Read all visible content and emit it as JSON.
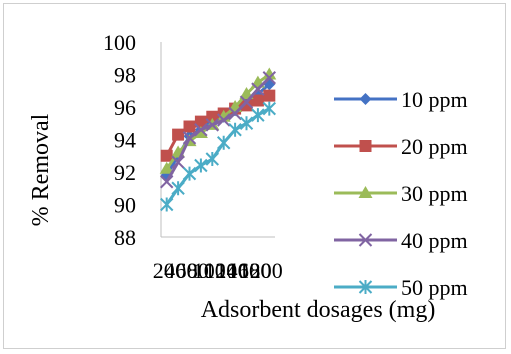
{
  "chart_data": {
    "type": "line",
    "title": "",
    "xlabel": "Adsorbent dosages (mg)",
    "ylabel": "% Removal",
    "ylim": [
      88,
      100
    ],
    "yticks": [
      88,
      90,
      92,
      94,
      96,
      98,
      100
    ],
    "grid": false,
    "legend_position": "right",
    "x": [
      20,
      40,
      60,
      80,
      100,
      120,
      140,
      160,
      180,
      200
    ],
    "x_tick_labels": [
      "20",
      "40",
      "60",
      "80",
      "100",
      "120",
      "140",
      "160",
      "180",
      "200"
    ],
    "series": [
      {
        "name": "10 ppm",
        "color": "#4472c4",
        "marker": "diamond",
        "values": [
          91.8,
          93.0,
          94.2,
          94.6,
          95.0,
          95.4,
          95.8,
          96.2,
          96.8,
          97.4
        ]
      },
      {
        "name": "20 ppm",
        "color": "#c0504d",
        "marker": "square",
        "values": [
          93.0,
          94.3,
          94.8,
          95.1,
          95.4,
          95.6,
          95.9,
          96.1,
          96.4,
          96.7
        ]
      },
      {
        "name": "30 ppm",
        "color": "#9bbb59",
        "marker": "triangle",
        "values": [
          92.2,
          93.2,
          93.9,
          94.4,
          94.9,
          95.4,
          96.0,
          96.8,
          97.5,
          98.0
        ]
      },
      {
        "name": "40 ppm",
        "color": "#8064a2",
        "marker": "x",
        "values": [
          91.4,
          92.6,
          94.1,
          94.6,
          94.9,
          95.2,
          95.6,
          96.3,
          97.1,
          97.8
        ]
      },
      {
        "name": "50 ppm",
        "color": "#4bacc6",
        "marker": "star",
        "values": [
          90.0,
          91.0,
          91.9,
          92.4,
          92.8,
          93.8,
          94.6,
          95.0,
          95.5,
          95.9
        ]
      }
    ]
  }
}
